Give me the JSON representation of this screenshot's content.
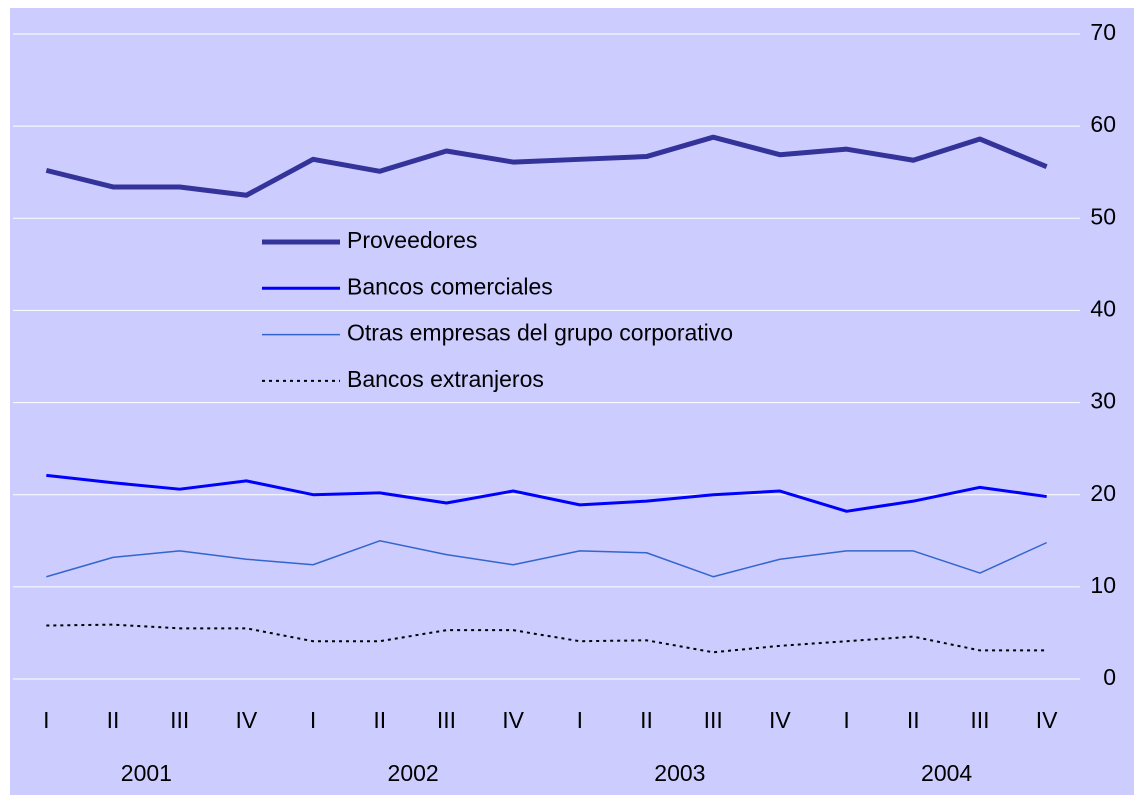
{
  "chart_data": {
    "type": "line",
    "categories": [
      "I",
      "II",
      "III",
      "IV",
      "I",
      "II",
      "III",
      "IV",
      "I",
      "II",
      "III",
      "IV",
      "I",
      "II",
      "III",
      "IV"
    ],
    "year_labels": [
      "2001",
      "2002",
      "2003",
      "2004"
    ],
    "series": [
      {
        "name": "Proveedores",
        "color": "#333399",
        "width": 5,
        "dash": "none",
        "values": [
          55.2,
          53.4,
          53.4,
          52.5,
          56.4,
          55.1,
          57.3,
          56.1,
          56.4,
          56.7,
          58.8,
          56.9,
          57.5,
          56.3,
          58.6,
          55.6
        ]
      },
      {
        "name": "Bancos comerciales",
        "color": "#0000ff",
        "width": 3,
        "dash": "none",
        "values": [
          22.1,
          21.3,
          20.6,
          21.5,
          20.0,
          20.2,
          19.1,
          20.4,
          18.9,
          19.3,
          20.0,
          20.4,
          18.2,
          19.3,
          20.8,
          19.8
        ]
      },
      {
        "name": "Otras empresas del grupo corporativo",
        "color": "#3366cc",
        "width": 1.5,
        "dash": "none",
        "values": [
          11.1,
          13.2,
          13.9,
          13.0,
          12.4,
          15.0,
          13.5,
          12.4,
          13.9,
          13.7,
          11.1,
          13.0,
          13.9,
          13.9,
          11.5,
          14.8
        ]
      },
      {
        "name": "Bancos extranjeros",
        "color": "#000000",
        "width": 2,
        "dash": "3,4",
        "values": [
          5.8,
          5.9,
          5.5,
          5.5,
          4.1,
          4.1,
          5.3,
          5.3,
          4.1,
          4.2,
          2.9,
          3.6,
          4.1,
          4.6,
          3.1,
          3.1
        ]
      }
    ],
    "ylim": [
      0,
      70
    ],
    "yticks": [
      0,
      10,
      20,
      30,
      40,
      50,
      60,
      70
    ],
    "grid": true,
    "y_axis_side": "right"
  }
}
